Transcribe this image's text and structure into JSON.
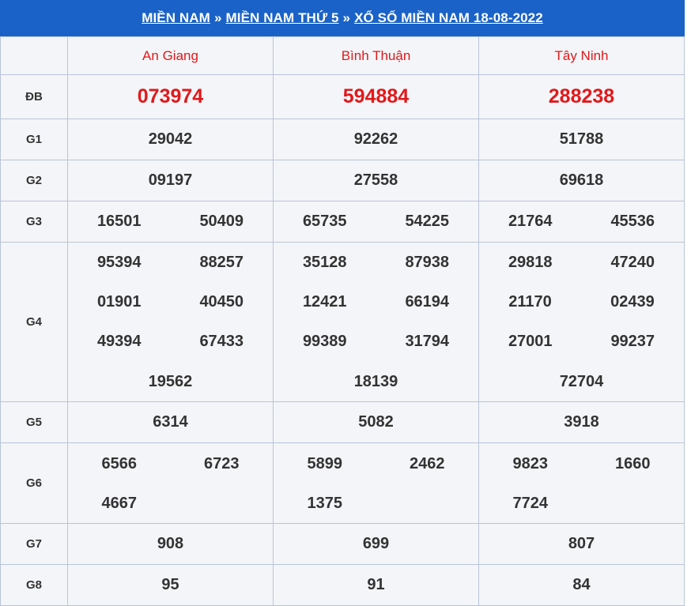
{
  "breadcrumb": {
    "crumb1": "MIỀN NAM",
    "crumb2": "MIỀN NAM THỨ 5",
    "crumb3": "XỔ SỐ MIỀN NAM 18-08-2022",
    "separator": "»"
  },
  "provinces": [
    "An Giang",
    "Bình Thuận",
    "Tây Ninh"
  ],
  "prizes": {
    "db": {
      "label": "ĐB",
      "values": [
        "073974",
        "594884",
        "288238"
      ]
    },
    "g1": {
      "label": "G1",
      "values": [
        "29042",
        "92262",
        "51788"
      ]
    },
    "g2": {
      "label": "G2",
      "values": [
        "09197",
        "27558",
        "69618"
      ]
    },
    "g3": {
      "label": "G3",
      "values": [
        [
          "16501",
          "50409"
        ],
        [
          "65735",
          "54225"
        ],
        [
          "21764",
          "45536"
        ]
      ]
    },
    "g4": {
      "label": "G4",
      "values": [
        [
          "95394",
          "88257",
          "01901",
          "40450",
          "49394",
          "67433",
          "19562"
        ],
        [
          "35128",
          "87938",
          "12421",
          "66194",
          "99389",
          "31794",
          "18139"
        ],
        [
          "29818",
          "47240",
          "21170",
          "02439",
          "27001",
          "99237",
          "72704"
        ]
      ]
    },
    "g5": {
      "label": "G5",
      "values": [
        "6314",
        "5082",
        "3918"
      ]
    },
    "g6": {
      "label": "G6",
      "values": [
        [
          "6566",
          "6723",
          "4667"
        ],
        [
          "5899",
          "2462",
          "1375"
        ],
        [
          "9823",
          "1660",
          "7724"
        ]
      ]
    },
    "g7": {
      "label": "G7",
      "values": [
        "908",
        "699",
        "807"
      ]
    },
    "g8": {
      "label": "G8",
      "values": [
        "95",
        "91",
        "84"
      ]
    }
  },
  "colors": {
    "header_bg": "#1a62c7",
    "accent_red": "#e0191b",
    "table_bg": "#f4f5f8"
  }
}
